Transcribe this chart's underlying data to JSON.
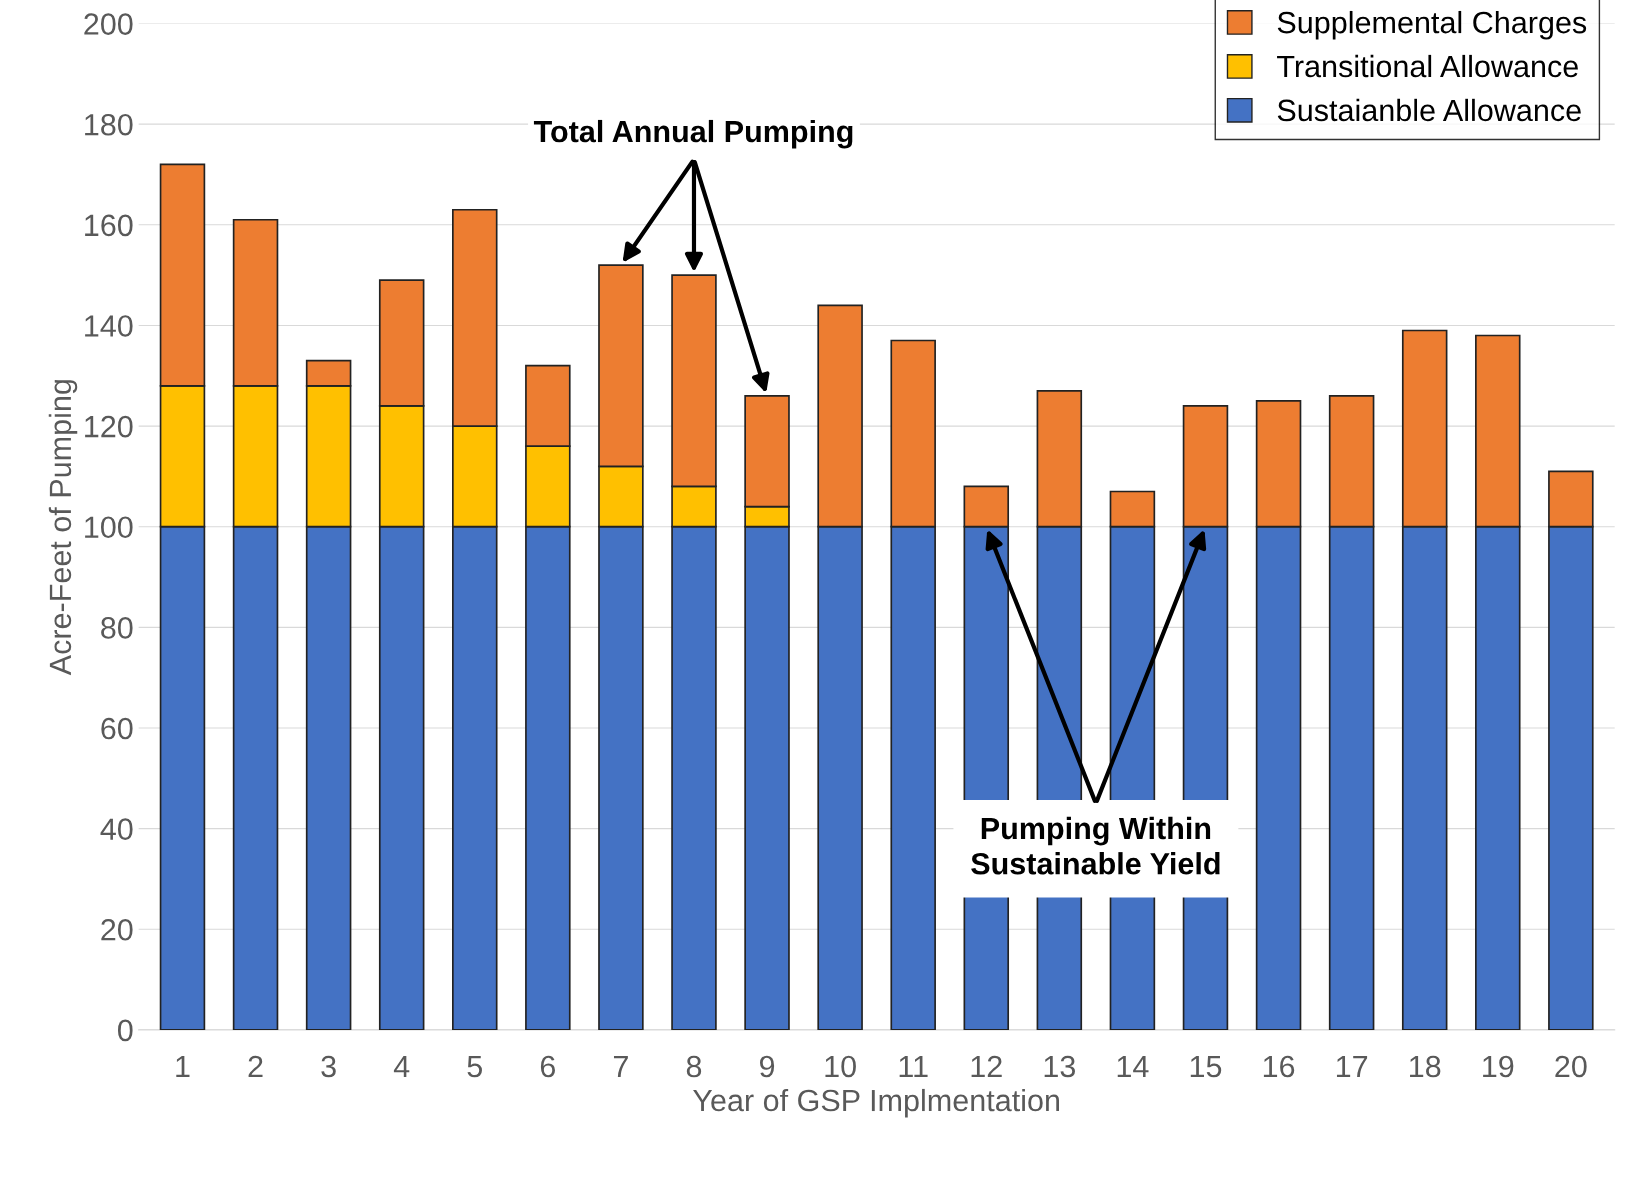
{
  "chart_data": {
    "type": "bar",
    "stacked": true,
    "xlabel": "Year of GSP Implmentation",
    "ylabel": "Acre-Feet of Pumping",
    "categories": [
      "1",
      "2",
      "3",
      "4",
      "5",
      "6",
      "7",
      "8",
      "9",
      "10",
      "11",
      "12",
      "13",
      "14",
      "15",
      "16",
      "17",
      "18",
      "19",
      "20"
    ],
    "series": [
      {
        "name": "Sustaianble Allowance",
        "color": "#4472c4",
        "values": [
          100,
          100,
          100,
          100,
          100,
          100,
          100,
          100,
          100,
          100,
          100,
          100,
          100,
          100,
          100,
          100,
          100,
          100,
          100,
          100
        ]
      },
      {
        "name": "Transitional Allowance",
        "color": "#ffc000",
        "values": [
          28,
          28,
          28,
          24,
          20,
          16,
          12,
          8,
          4,
          null,
          null,
          null,
          null,
          null,
          null,
          null,
          null,
          null,
          null,
          null
        ]
      },
      {
        "name": "Supplemental Charges",
        "color": "#ed7d31",
        "values": [
          44,
          33,
          5,
          25,
          43,
          16,
          40,
          42,
          22,
          44,
          37,
          8,
          27,
          7,
          24,
          25,
          26,
          39,
          38,
          11
        ]
      }
    ],
    "ylim": [
      0,
      200
    ],
    "yticks": [
      0,
      20,
      40,
      60,
      80,
      100,
      120,
      140,
      160,
      180,
      200
    ],
    "grid": "y",
    "legend": "top right",
    "annotations": [
      {
        "text": "Total Annual Pumping",
        "x": "8",
        "y": 150
      },
      {
        "text": "Pumping Within\nSustainable Yield",
        "x": "12",
        "y": 100
      }
    ]
  }
}
